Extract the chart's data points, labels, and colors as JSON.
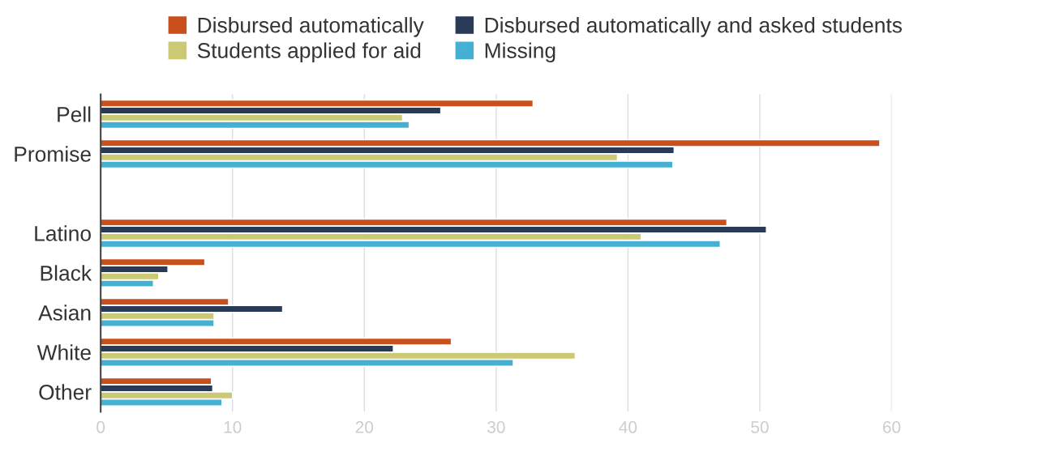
{
  "chart_data": {
    "type": "bar",
    "orientation": "horizontal",
    "categories": [
      "Pell",
      "Promise",
      null,
      "Latino",
      "Black",
      "Asian",
      "White",
      "Other"
    ],
    "series": [
      {
        "name": "Disbursed automatically",
        "color": "#c9501c",
        "values": [
          32.8,
          59.1,
          null,
          47.5,
          7.9,
          9.7,
          26.6,
          8.4
        ]
      },
      {
        "name": "Disbursed automatically and asked students",
        "color": "#283a55",
        "values": [
          25.8,
          43.5,
          null,
          50.5,
          5.1,
          13.8,
          22.2,
          8.5
        ]
      },
      {
        "name": "Students applied for aid",
        "color": "#cbc974",
        "values": [
          22.9,
          39.2,
          null,
          41.0,
          4.4,
          8.6,
          36.0,
          10.0
        ]
      },
      {
        "name": "Missing",
        "color": "#45b0d1",
        "values": [
          23.4,
          43.4,
          null,
          47.0,
          4.0,
          8.6,
          31.3,
          9.2
        ]
      }
    ],
    "xlim": [
      0,
      60
    ],
    "xticks": [
      0,
      10,
      20,
      30,
      40,
      50,
      60
    ],
    "grid": "x",
    "legend": "top"
  }
}
